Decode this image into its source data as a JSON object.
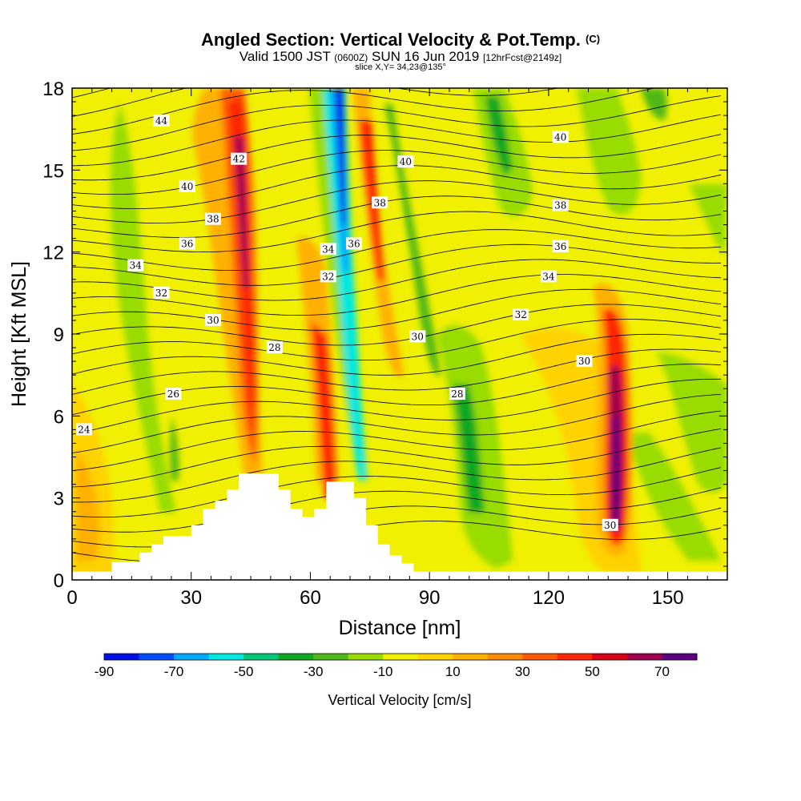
{
  "header": {
    "title": "Angled Section: Vertical Velocity & Pot.Temp.",
    "title_suffix": "(C)",
    "valid_prefix": "Valid 1500 JST",
    "valid_utc": "(0600Z)",
    "valid_date": "SUN 16 Jun 2019",
    "forecast": "[12hrFcst@2149z]",
    "slice": "slice X,Y= 34,23@135°"
  },
  "chart_data": {
    "type": "heatmap",
    "xlabel": "Distance [nm]",
    "ylabel": "Height [Kft MSL]",
    "xlim": [
      0,
      165
    ],
    "ylim": [
      0,
      18
    ],
    "x_ticks": [
      "0",
      "30",
      "60",
      "90",
      "120",
      "150"
    ],
    "y_ticks": [
      "0",
      "3",
      "6",
      "9",
      "12",
      "15",
      "18"
    ],
    "colorbar": {
      "label": "Vertical Velocity [cm/s]",
      "levels": [
        -90,
        -80,
        -70,
        -60,
        -50,
        -40,
        -30,
        -20,
        -10,
        0,
        10,
        20,
        30,
        40,
        50,
        60,
        70,
        80
      ],
      "tick_labels": [
        "-90",
        "-70",
        "-50",
        "-30",
        "-10",
        "10",
        "30",
        "50",
        "70"
      ],
      "colors": [
        "#0010e8",
        "#0050ff",
        "#00a8ff",
        "#00e8e0",
        "#00c878",
        "#10a820",
        "#50b818",
        "#98dc00",
        "#f0f000",
        "#ffd200",
        "#ffb000",
        "#ff8c00",
        "#ff5a00",
        "#ff2800",
        "#d80018",
        "#a00050",
        "#5a0080"
      ]
    },
    "contour_labels": [
      {
        "text": "44",
        "x": 22.5,
        "y": 16.8
      },
      {
        "text": "42",
        "x": 42.0,
        "y": 15.4
      },
      {
        "text": "40",
        "x": 29.0,
        "y": 14.4
      },
      {
        "text": "38",
        "x": 35.5,
        "y": 13.2
      },
      {
        "text": "36",
        "x": 29.0,
        "y": 12.3
      },
      {
        "text": "34",
        "x": 16.0,
        "y": 11.5
      },
      {
        "text": "32",
        "x": 22.5,
        "y": 10.5
      },
      {
        "text": "30",
        "x": 35.5,
        "y": 9.5
      },
      {
        "text": "28",
        "x": 51.0,
        "y": 8.5
      },
      {
        "text": "26",
        "x": 25.5,
        "y": 6.8
      },
      {
        "text": "24",
        "x": 3.0,
        "y": 5.5
      },
      {
        "text": "34",
        "x": 64.5,
        "y": 12.1
      },
      {
        "text": "36",
        "x": 71.0,
        "y": 12.3
      },
      {
        "text": "32",
        "x": 64.5,
        "y": 11.1
      },
      {
        "text": "40",
        "x": 84.0,
        "y": 15.3
      },
      {
        "text": "38",
        "x": 77.5,
        "y": 13.8
      },
      {
        "text": "30",
        "x": 87.0,
        "y": 8.9
      },
      {
        "text": "28",
        "x": 97.0,
        "y": 6.8
      },
      {
        "text": "40",
        "x": 123.0,
        "y": 16.2
      },
      {
        "text": "38",
        "x": 123.0,
        "y": 13.7
      },
      {
        "text": "36",
        "x": 123.0,
        "y": 12.2
      },
      {
        "text": "34",
        "x": 120.0,
        "y": 11.1
      },
      {
        "text": "32",
        "x": 113.0,
        "y": 9.7
      },
      {
        "text": "30",
        "x": 129.0,
        "y": 8.0
      },
      {
        "text": "30",
        "x": 135.5,
        "y": 2.0
      }
    ],
    "terrain": [
      [
        0,
        0.3
      ],
      [
        10,
        0.3
      ],
      [
        10,
        0.65
      ],
      [
        17,
        0.65
      ],
      [
        17,
        1.0
      ],
      [
        20,
        1.0
      ],
      [
        20,
        1.3
      ],
      [
        23,
        1.3
      ],
      [
        23,
        1.6
      ],
      [
        30,
        1.6
      ],
      [
        30,
        2.0
      ],
      [
        33,
        2.0
      ],
      [
        33,
        2.6
      ],
      [
        36,
        2.6
      ],
      [
        36,
        2.9
      ],
      [
        39,
        2.9
      ],
      [
        39,
        3.3
      ],
      [
        42,
        3.3
      ],
      [
        42,
        3.9
      ],
      [
        52,
        3.9
      ],
      [
        52,
        3.3
      ],
      [
        55,
        3.3
      ],
      [
        55,
        2.6
      ],
      [
        58,
        2.6
      ],
      [
        58,
        2.3
      ],
      [
        61,
        2.3
      ],
      [
        61,
        2.6
      ],
      [
        64,
        2.6
      ],
      [
        64,
        3.6
      ],
      [
        71,
        3.6
      ],
      [
        71,
        3.0
      ],
      [
        74,
        3.0
      ],
      [
        74,
        2.0
      ],
      [
        77,
        2.0
      ],
      [
        77,
        1.3
      ],
      [
        80,
        1.3
      ],
      [
        80,
        0.9
      ],
      [
        83,
        0.9
      ],
      [
        83,
        0.6
      ],
      [
        86,
        0.6
      ],
      [
        86,
        0.3
      ],
      [
        165,
        0.3
      ]
    ]
  }
}
